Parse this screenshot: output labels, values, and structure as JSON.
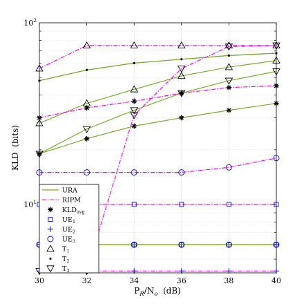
{
  "chart_data": {
    "type": "line",
    "x": [
      30,
      32,
      34,
      36,
      38,
      40
    ],
    "xlim": [
      30,
      40
    ],
    "ylim": [
      4.2,
      100
    ],
    "yscale": "log",
    "grid": true,
    "xticks": [
      "30",
      "32",
      "34",
      "36",
      "38",
      "40"
    ],
    "yticks": [
      {
        "label": "10",
        "sup": "1",
        "value": 10
      },
      {
        "label": "10",
        "sup": "2",
        "value": 100
      }
    ],
    "xlabel": {
      "main": "P",
      "sub1": "R",
      "mid": "/N",
      "sub2": "o",
      "tail": "  (dB)"
    },
    "ylabel": "KLD  (bits)",
    "legend_position": "bottom-left",
    "colors": {
      "URA": "#77ac30",
      "RIPM": "#ff00ff",
      "markers": "#0000ff",
      "black": "#000000"
    },
    "legend": [
      {
        "key": "URA",
        "label": "URA",
        "sub": ""
      },
      {
        "key": "RIPM",
        "label": "RIPM",
        "sub": ""
      },
      {
        "key": "KLD",
        "label": "KLD",
        "sub": "avg"
      },
      {
        "key": "UE1",
        "label": "UE",
        "sub": "1"
      },
      {
        "key": "UE2",
        "label": "UE",
        "sub": "2"
      },
      {
        "key": "UE3",
        "label": "UE",
        "sub": "3"
      },
      {
        "key": "T1",
        "label": "T",
        "sub": "1"
      },
      {
        "key": "T2",
        "label": "T",
        "sub": "2"
      },
      {
        "key": "T3",
        "label": "T",
        "sub": "3"
      }
    ],
    "series": [
      {
        "method": "URA",
        "marker": "none",
        "values": [
          48,
          55,
          60,
          63,
          66,
          68
        ]
      },
      {
        "method": "URA",
        "marker": "dot",
        "values": [
          48,
          55,
          60,
          63,
          66,
          68
        ]
      },
      {
        "method": "URA",
        "marker": "triangle-up",
        "values": [
          28,
          36,
          43,
          51,
          57,
          62
        ]
      },
      {
        "method": "URA",
        "marker": "triangle-down",
        "values": [
          19,
          26,
          33,
          41,
          48,
          54
        ]
      },
      {
        "method": "URA",
        "marker": "star",
        "values": [
          19,
          23,
          27,
          30,
          33,
          36
        ]
      },
      {
        "method": "URA",
        "marker": "square",
        "values": [
          6.0,
          6.0,
          6.0,
          6.0,
          6.0,
          6.0
        ]
      },
      {
        "method": "URA",
        "marker": "plus",
        "values": [
          6.0,
          6.0,
          6.0,
          6.0,
          6.0,
          6.0
        ]
      },
      {
        "method": "URA",
        "marker": "circle",
        "values": [
          6.0,
          6.0,
          6.0,
          6.0,
          6.0,
          6.0
        ]
      },
      {
        "method": "RIPM",
        "marker": "triangle-up",
        "values": [
          56,
          75,
          75,
          75,
          75,
          75
        ]
      },
      {
        "method": "RIPM",
        "marker": "triangle-down",
        "values": [
          4.3,
          4.3,
          31,
          56,
          74,
          75
        ]
      },
      {
        "method": "RIPM",
        "marker": "star",
        "values": [
          30,
          34,
          37,
          41,
          44,
          45
        ]
      },
      {
        "method": "RIPM",
        "marker": "circle",
        "values": [
          15,
          15,
          15,
          15,
          16,
          18
        ]
      },
      {
        "method": "RIPM",
        "marker": "square",
        "values": [
          10,
          10,
          10,
          10,
          10,
          10
        ]
      },
      {
        "method": "RIPM",
        "marker": "plus",
        "values": [
          4.3,
          4.3,
          4.3,
          4.3,
          4.3,
          4.3
        ]
      }
    ]
  }
}
